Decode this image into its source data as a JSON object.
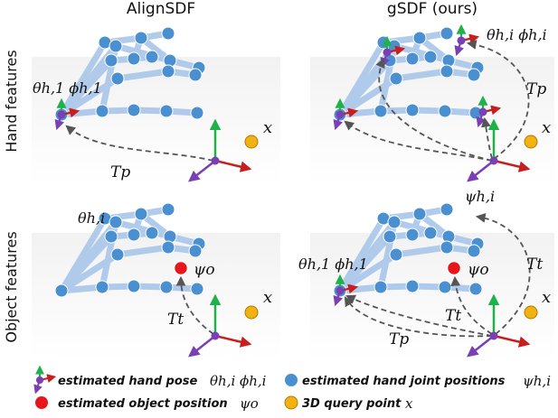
{
  "headers": {
    "left": "AlignSDF",
    "right": "gSDF (ours)"
  },
  "row_labels": {
    "top": "Hand features",
    "bottom": "Object features"
  },
  "annotations": {
    "theta_phi_1": "θh,1 ϕh,1",
    "theta_phi_i": "θh,i ϕh,i",
    "theta_i": "θh,i",
    "psi_i": "ψh,i",
    "psi_o": "ψo",
    "x": "x",
    "Tp": "Tp",
    "Tt": "Tt"
  },
  "legend": {
    "hand_pose": "estimated hand pose",
    "hand_pose_math": "θh,i ϕh,i",
    "joint_positions": "estimated hand joint positions",
    "joint_positions_math": "ψh,i",
    "object_position": "estimated object position",
    "object_position_math": "ψo",
    "query_point": "3D query point",
    "query_point_math": "x"
  },
  "colors": {
    "joint": "#4a90d0",
    "bone": "#a9c6ea",
    "object": "#e8161b",
    "query": "#f2b212",
    "axis_green": "#1fb24a",
    "axis_red": "#c81e1e",
    "axis_purple": "#7a3fb3",
    "dashed": "#555555"
  }
}
